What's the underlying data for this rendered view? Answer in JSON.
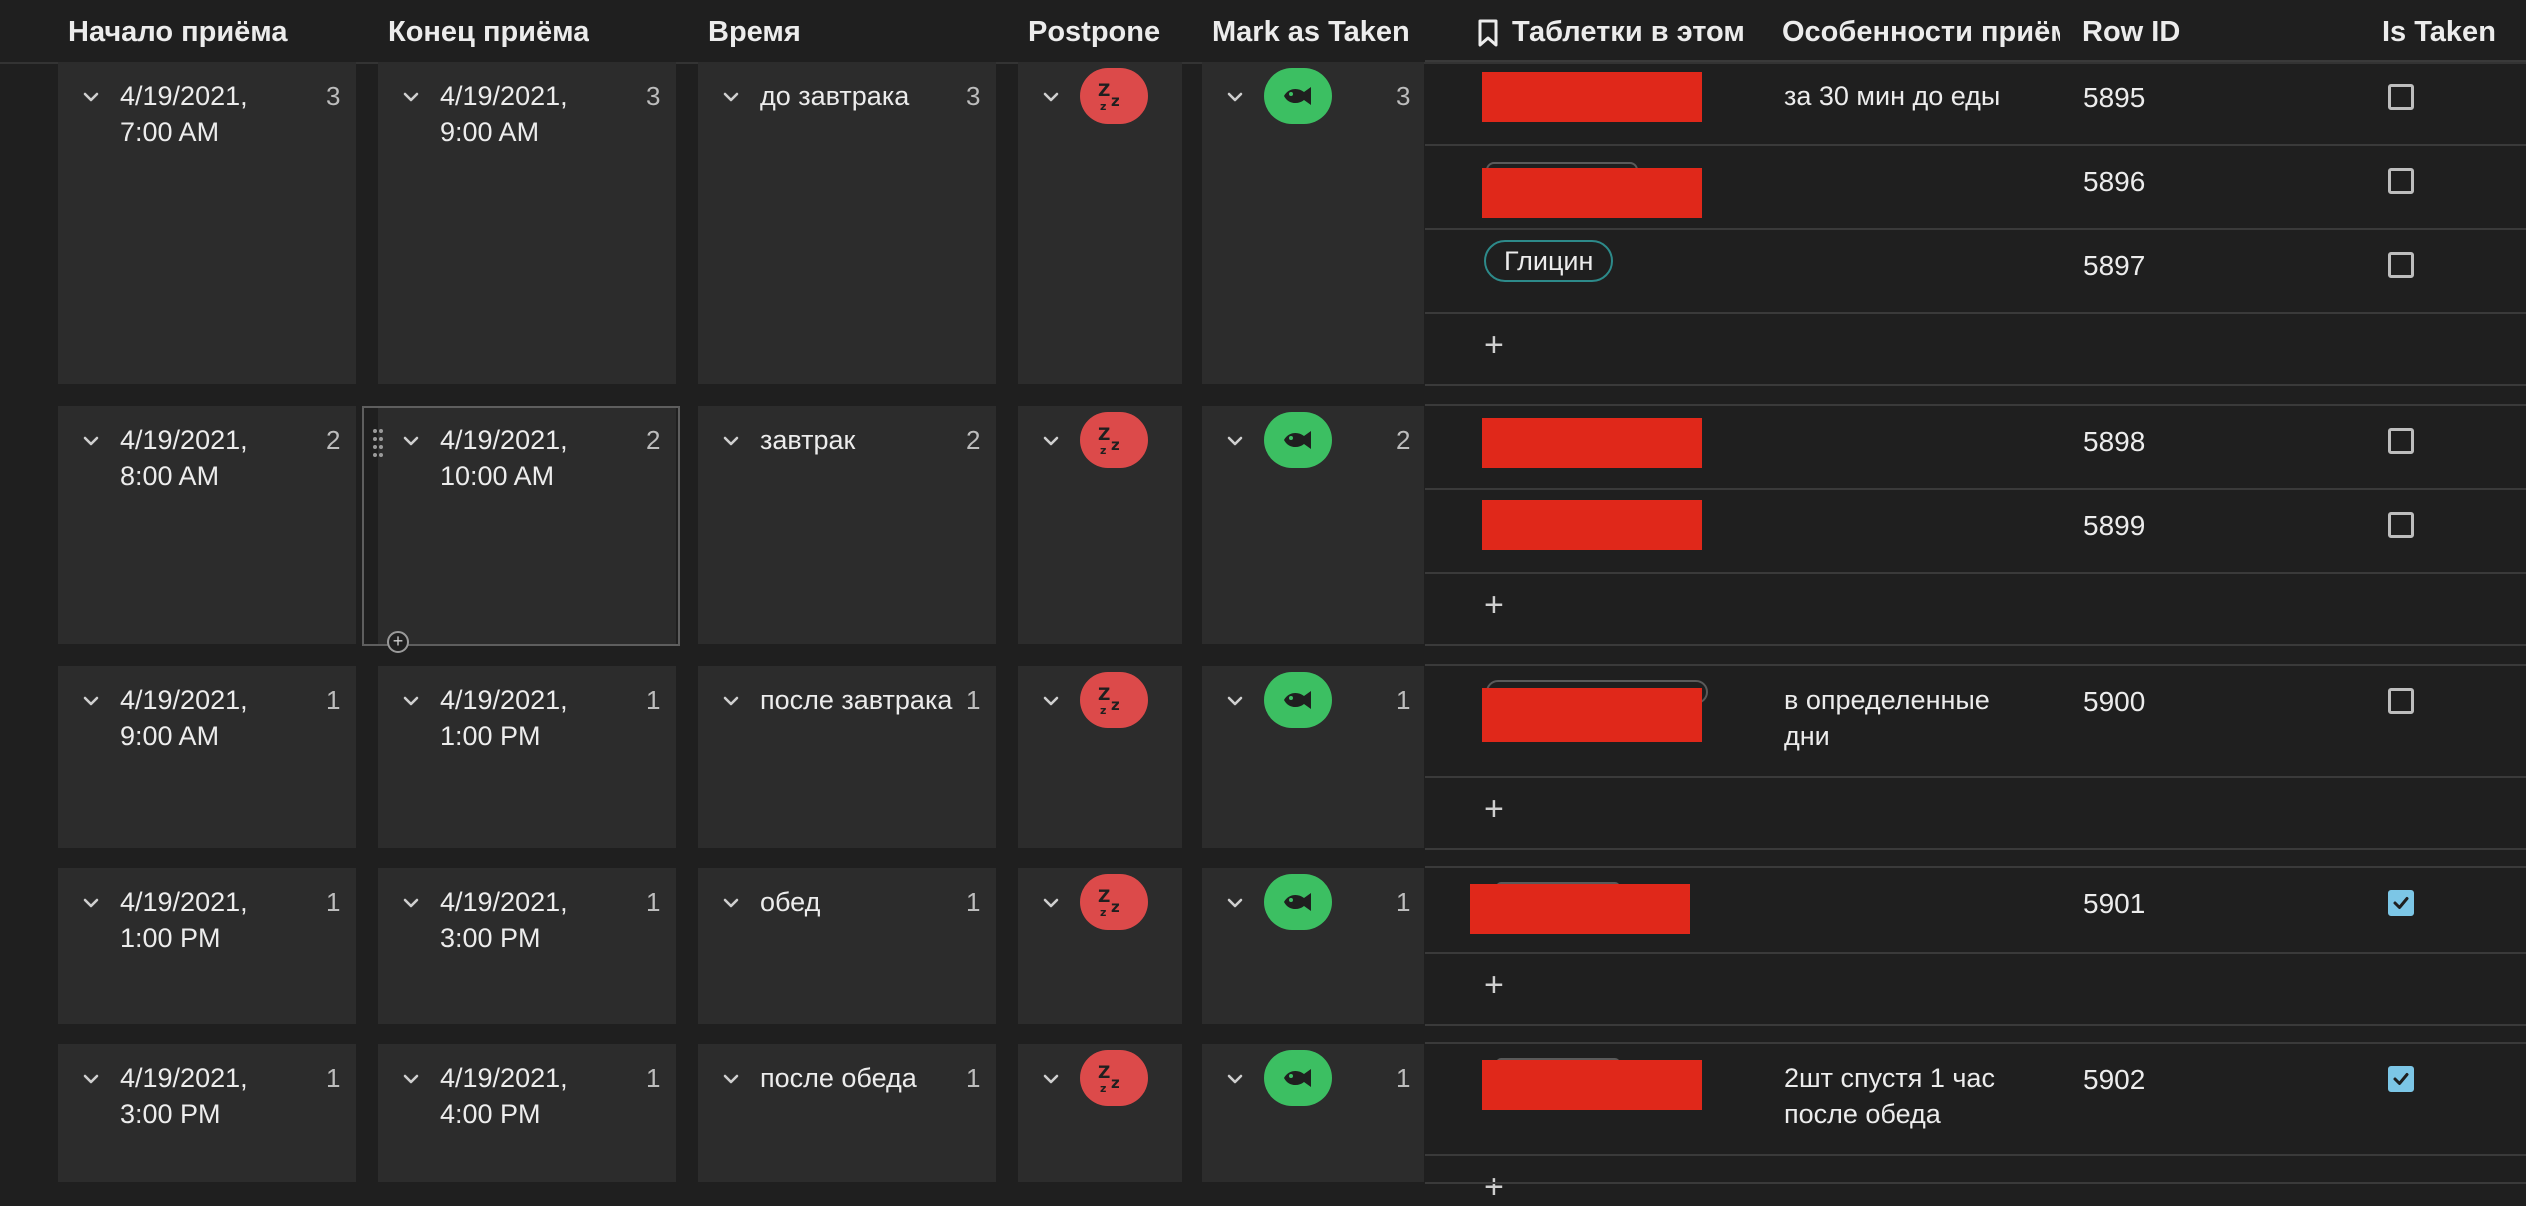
{
  "header": {
    "start": "Начало приёма",
    "end": "Конец приёма",
    "time": "Время",
    "postpone": "Postpone",
    "mark_taken": "Mark as Taken",
    "pills": "Таблетки в этом",
    "notes": "Особенности приём",
    "row_id": "Row ID",
    "is_taken": "Is Taken"
  },
  "icons": {
    "postpone": "zzz-icon",
    "taken": "fish-icon",
    "expand": "chevron-down-icon",
    "bookmark": "bookmark-icon",
    "add": "plus-icon",
    "drag": "drag-handle-icon"
  },
  "colors": {
    "postpone": "#dc4a4a",
    "taken": "#3cbf62",
    "checkbox_checked": "#7cc6e6",
    "tag_border": "#2d8a8a",
    "redaction": "#e0281a"
  },
  "groups": [
    {
      "start": {
        "line1": "4/19/2021,",
        "line2": "7:00 AM",
        "count": "3"
      },
      "end": {
        "line1": "4/19/2021,",
        "line2": "9:00 AM",
        "count": "3"
      },
      "time": {
        "label": "до завтрака",
        "count": "3"
      },
      "taken_count": "3",
      "rows": [
        {
          "note_line1": "за 30 мин до еды",
          "note_line2": "",
          "row_id": "5895",
          "is_taken": false,
          "tag": ""
        },
        {
          "note_line1": "",
          "note_line2": "",
          "row_id": "5896",
          "is_taken": false,
          "tag": ""
        },
        {
          "note_line1": "",
          "note_line2": "",
          "row_id": "5897",
          "is_taken": false,
          "tag": "Глицин"
        }
      ],
      "add_label": "+"
    },
    {
      "start": {
        "line1": "4/19/2021,",
        "line2": "8:00 AM",
        "count": "2"
      },
      "end": {
        "line1": "4/19/2021,",
        "line2": "10:00 AM",
        "count": "2"
      },
      "time": {
        "label": "завтрак",
        "count": "2"
      },
      "taken_count": "2",
      "rows": [
        {
          "note_line1": "",
          "note_line2": "",
          "row_id": "5898",
          "is_taken": false,
          "tag": ""
        },
        {
          "note_line1": "",
          "note_line2": "",
          "row_id": "5899",
          "is_taken": false,
          "tag": ""
        }
      ],
      "add_label": "+"
    },
    {
      "start": {
        "line1": "4/19/2021,",
        "line2": "9:00 AM",
        "count": "1"
      },
      "end": {
        "line1": "4/19/2021,",
        "line2": "1:00 PM",
        "count": "1"
      },
      "time": {
        "label": "после завтрака",
        "count": "1"
      },
      "taken_count": "1",
      "rows": [
        {
          "note_line1": "в определенные",
          "note_line2": "дни",
          "row_id": "5900",
          "is_taken": false,
          "tag": ""
        }
      ],
      "add_label": "+"
    },
    {
      "start": {
        "line1": "4/19/2021,",
        "line2": "1:00 PM",
        "count": "1"
      },
      "end": {
        "line1": "4/19/2021,",
        "line2": "3:00 PM",
        "count": "1"
      },
      "time": {
        "label": "обед",
        "count": "1"
      },
      "taken_count": "1",
      "rows": [
        {
          "note_line1": "",
          "note_line2": "",
          "row_id": "5901",
          "is_taken": true,
          "tag": ""
        }
      ],
      "add_label": "+"
    },
    {
      "start": {
        "line1": "4/19/2021,",
        "line2": "3:00 PM",
        "count": "1"
      },
      "end": {
        "line1": "4/19/2021,",
        "line2": "4:00 PM",
        "count": "1"
      },
      "time": {
        "label": "после обеда",
        "count": "1"
      },
      "taken_count": "1",
      "rows": [
        {
          "note_line1": "2шт спустя 1 час",
          "note_line2": "после обеда",
          "row_id": "5902",
          "is_taken": true,
          "tag": ""
        }
      ],
      "add_label": "+"
    }
  ]
}
